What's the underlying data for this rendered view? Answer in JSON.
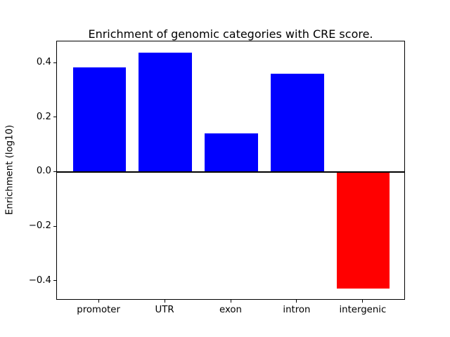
{
  "chart_data": {
    "type": "bar",
    "title": "Enrichment of genomic categories with CRE score.",
    "xlabel": "",
    "ylabel": "Enrichment (log10)",
    "categories": [
      "promoter",
      "UTR",
      "exon",
      "intron",
      "intergenic"
    ],
    "values": [
      0.385,
      0.44,
      0.143,
      0.361,
      -0.425
    ],
    "positive_color": "#0000ff",
    "negative_color": "#ff0000",
    "bar_colors": [
      "#0000ff",
      "#0000ff",
      "#0000ff",
      "#0000ff",
      "#ff0000"
    ],
    "ylim": [
      -0.47,
      0.48
    ],
    "yticks": [
      -0.4,
      -0.2,
      0.0,
      0.2,
      0.4
    ],
    "ytick_labels": [
      "−0.4",
      "−0.2",
      "0.0",
      "0.2",
      "0.4"
    ],
    "zero_line": true,
    "grid": false,
    "legend_position": "none",
    "background_color": "#ffffff",
    "axis_color": "#000000",
    "bar_width_fraction": 0.8
  }
}
